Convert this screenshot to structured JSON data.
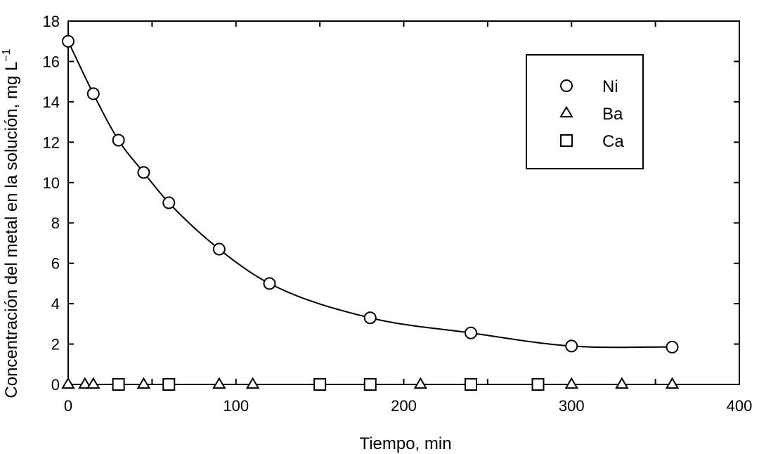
{
  "chart_data": {
    "type": "scatter",
    "xlabel": "Tiempo, min",
    "ylabel": "Concentración del metal en la solución, mg L",
    "ylabel_sup": "−1",
    "xlim": [
      0,
      400
    ],
    "ylim": [
      0,
      18
    ],
    "x_ticks": [
      "0",
      "100",
      "200",
      "300",
      "400"
    ],
    "y_ticks": [
      "0",
      "2",
      "4",
      "6",
      "8",
      "10",
      "12",
      "14",
      "16",
      "18"
    ],
    "grid": false,
    "legend_position": "top-right",
    "series": [
      {
        "name": "Ni",
        "marker": "circle",
        "x": [
          0,
          15,
          30,
          45,
          60,
          90,
          120,
          180,
          240,
          300,
          360
        ],
        "y": [
          17.0,
          14.4,
          12.1,
          10.5,
          9.0,
          6.7,
          5.0,
          3.3,
          2.55,
          1.9,
          1.85
        ],
        "fit_curve": true
      },
      {
        "name": "Ba",
        "marker": "triangle",
        "x": [
          0,
          10,
          15,
          45,
          90,
          110,
          210,
          300,
          330,
          360
        ],
        "y": [
          0,
          0,
          0,
          0,
          0,
          0,
          0,
          0,
          0,
          0
        ]
      },
      {
        "name": "Ca",
        "marker": "square",
        "x": [
          30,
          60,
          150,
          180,
          240,
          280
        ],
        "y": [
          0,
          0,
          0,
          0,
          0,
          0
        ]
      }
    ]
  }
}
